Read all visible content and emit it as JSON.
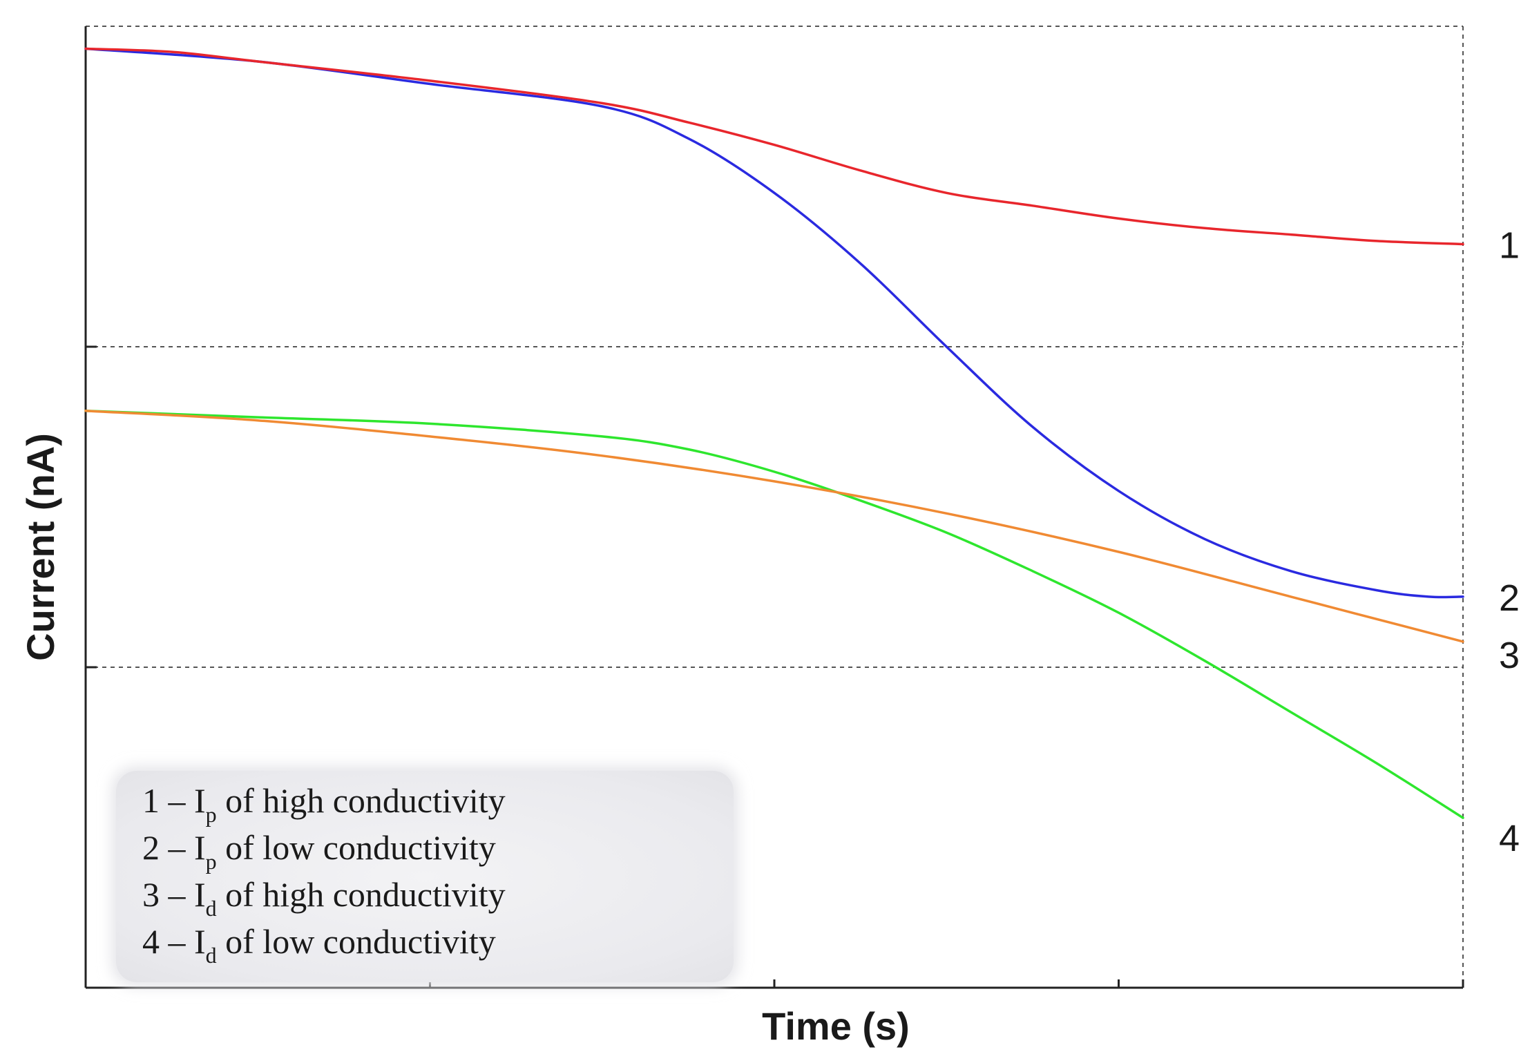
{
  "chart_data": {
    "type": "line",
    "title": "",
    "xlabel": "Time (s)",
    "ylabel": "Current (nA)",
    "xlim": [
      0,
      4
    ],
    "ylim": [
      0,
      3
    ],
    "grid": "horizontal dashed at y=1 and y=2; dashed frame top and right",
    "series": [
      {
        "name": "1 – Ip of high conductivity",
        "label": "1",
        "color": "#e8262c",
        "x": [
          0,
          0.25,
          0.5,
          1.0,
          1.5,
          1.75,
          2.0,
          2.25,
          2.5,
          2.75,
          3.0,
          3.25,
          3.5,
          3.75,
          4.0
        ],
        "y": [
          2.93,
          2.92,
          2.89,
          2.83,
          2.76,
          2.7,
          2.63,
          2.55,
          2.48,
          2.44,
          2.4,
          2.37,
          2.35,
          2.33,
          2.32
        ]
      },
      {
        "name": "2 – Ip of low conductivity",
        "label": "2",
        "color": "#2a2ae0",
        "x": [
          0,
          0.5,
          1.0,
          1.5,
          1.75,
          2.0,
          2.25,
          2.5,
          2.75,
          3.0,
          3.25,
          3.5,
          3.75,
          3.9,
          4.0
        ],
        "y": [
          2.93,
          2.89,
          2.82,
          2.75,
          2.65,
          2.48,
          2.26,
          2.0,
          1.75,
          1.55,
          1.4,
          1.3,
          1.24,
          1.22,
          1.22
        ]
      },
      {
        "name": "3 – Id of high conductivity",
        "label": "3",
        "color": "#f08a33",
        "x": [
          0,
          0.5,
          1.0,
          1.5,
          2.0,
          2.5,
          3.0,
          3.5,
          4.0
        ],
        "y": [
          1.8,
          1.77,
          1.72,
          1.66,
          1.58,
          1.48,
          1.36,
          1.22,
          1.08
        ]
      },
      {
        "name": "4 – Id of low conductivity",
        "label": "4",
        "color": "#2ee62e",
        "x": [
          0,
          0.5,
          1.0,
          1.5,
          1.75,
          2.0,
          2.25,
          2.5,
          2.75,
          3.0,
          3.25,
          3.5,
          3.75,
          4.0
        ],
        "y": [
          1.8,
          1.78,
          1.76,
          1.72,
          1.68,
          1.61,
          1.52,
          1.42,
          1.3,
          1.17,
          1.02,
          0.86,
          0.7,
          0.53
        ]
      }
    ],
    "legend": {
      "placement": "bottom-left",
      "entries": [
        {
          "num": "1 – I",
          "sub": "p",
          "rest": " of high conductivity"
        },
        {
          "num": "2 – I",
          "sub": "p",
          "rest": " of low conductivity"
        },
        {
          "num": "3 – I",
          "sub": "d",
          "rest": " of high conductivity"
        },
        {
          "num": "4 – I",
          "sub": "d",
          "rest": " of low conductivity"
        }
      ]
    }
  }
}
